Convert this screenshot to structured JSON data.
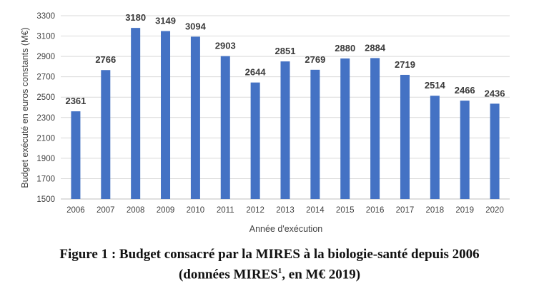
{
  "chart_data": {
    "type": "bar",
    "categories": [
      "2006",
      "2007",
      "2008",
      "2009",
      "2010",
      "2011",
      "2012",
      "2013",
      "2014",
      "2015",
      "2016",
      "2017",
      "2018",
      "2019",
      "2020"
    ],
    "values": [
      2361,
      2766,
      3180,
      3149,
      3094,
      2903,
      2644,
      2851,
      2769,
      2880,
      2884,
      2719,
      2514,
      2466,
      2436
    ],
    "xlabel": "Année d'exécution",
    "ylabel": "Budget exécuté en euros constants (M€)",
    "ylim": [
      1500,
      3300
    ],
    "yticks": [
      1500,
      1700,
      1900,
      2100,
      2300,
      2500,
      2700,
      2900,
      3100,
      3300
    ],
    "grid": true,
    "bar_color": "#4472c4"
  },
  "caption": {
    "line1": "Figure 1 : Budget consacré par la MIRES à la biologie-santé depuis 2006",
    "line2_before": "(données MIRES",
    "line2_sup": "1",
    "line2_after": ", en M€ 2019)"
  }
}
